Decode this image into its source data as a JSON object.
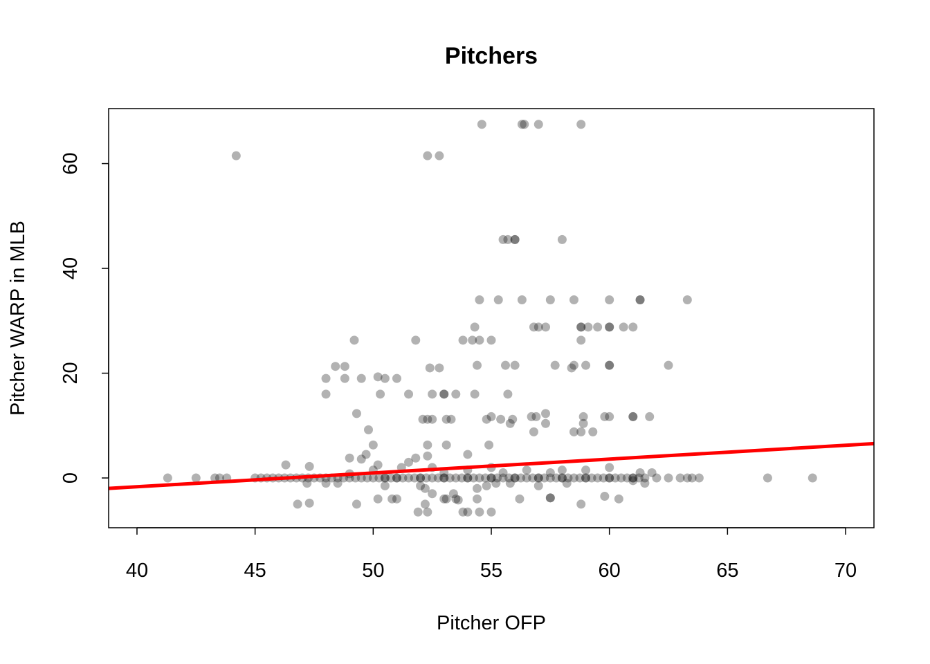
{
  "chart_data": {
    "type": "scatter",
    "title": "Pitchers",
    "xlabel": "Pitcher OFP",
    "ylabel": "Pitcher WARP in MLB",
    "xlim": [
      38.8,
      71.2
    ],
    "ylim": [
      -9.5,
      70.5
    ],
    "x_ticks": [
      "40",
      "45",
      "50",
      "55",
      "60",
      "65",
      "70"
    ],
    "y_ticks": [
      "0",
      "20",
      "40",
      "60"
    ],
    "grid": false,
    "point_color": "#000000",
    "point_alpha": 0.3,
    "fit_line": {
      "color": "#ff0000",
      "intercept": -12.24,
      "slope": 0.264
    },
    "points": [
      [
        54.6,
        67.5
      ],
      [
        56.3,
        67.5
      ],
      [
        56.4,
        67.5
      ],
      [
        57.0,
        67.5
      ],
      [
        58.8,
        67.5
      ],
      [
        44.2,
        61.5
      ],
      [
        52.3,
        61.5
      ],
      [
        52.8,
        61.5
      ],
      [
        55.5,
        45.5
      ],
      [
        55.7,
        45.5
      ],
      [
        56.0,
        45.5
      ],
      [
        56.0,
        45.5
      ],
      [
        58.0,
        45.5
      ],
      [
        54.5,
        34
      ],
      [
        55.3,
        34
      ],
      [
        56.3,
        34
      ],
      [
        57.5,
        34
      ],
      [
        58.5,
        34
      ],
      [
        60.0,
        34
      ],
      [
        61.3,
        34
      ],
      [
        61.3,
        34
      ],
      [
        63.3,
        34
      ],
      [
        54.3,
        28.8
      ],
      [
        56.8,
        28.8
      ],
      [
        57.0,
        28.8
      ],
      [
        57.3,
        28.8
      ],
      [
        58.8,
        28.8
      ],
      [
        58.8,
        28.8
      ],
      [
        59.1,
        28.8
      ],
      [
        59.5,
        28.8
      ],
      [
        60.0,
        28.8
      ],
      [
        60.0,
        28.8
      ],
      [
        60.6,
        28.8
      ],
      [
        61.0,
        28.8
      ],
      [
        49.2,
        26.3
      ],
      [
        51.8,
        26.3
      ],
      [
        53.8,
        26.3
      ],
      [
        54.2,
        26.3
      ],
      [
        54.5,
        26.3
      ],
      [
        55.0,
        26.3
      ],
      [
        58.8,
        26.3
      ],
      [
        48.4,
        21.3
      ],
      [
        48.8,
        21.3
      ],
      [
        52.4,
        21
      ],
      [
        52.8,
        21
      ],
      [
        54.4,
        21.5
      ],
      [
        55.6,
        21.5
      ],
      [
        56.0,
        21.5
      ],
      [
        57.7,
        21.5
      ],
      [
        58.4,
        21
      ],
      [
        58.5,
        21.5
      ],
      [
        59.0,
        21.5
      ],
      [
        60.0,
        21.5
      ],
      [
        60.0,
        21.5
      ],
      [
        62.5,
        21.5
      ],
      [
        48.0,
        19
      ],
      [
        48.8,
        19
      ],
      [
        49.5,
        19
      ],
      [
        50.2,
        19.3
      ],
      [
        50.5,
        19
      ],
      [
        51.0,
        19
      ],
      [
        48.0,
        16
      ],
      [
        50.3,
        16
      ],
      [
        51.5,
        16
      ],
      [
        52.5,
        16
      ],
      [
        53.0,
        16
      ],
      [
        53.0,
        16
      ],
      [
        53.5,
        16
      ],
      [
        54.3,
        16
      ],
      [
        55.7,
        16
      ],
      [
        49.3,
        12.3
      ],
      [
        57.3,
        12.3
      ],
      [
        52.1,
        11.2
      ],
      [
        52.3,
        11.2
      ],
      [
        52.5,
        11.2
      ],
      [
        53.1,
        11.2
      ],
      [
        53.3,
        11.2
      ],
      [
        54.8,
        11.2
      ],
      [
        55.0,
        11.7
      ],
      [
        55.4,
        11.2
      ],
      [
        55.9,
        11.2
      ],
      [
        56.7,
        11.7
      ],
      [
        56.9,
        11.7
      ],
      [
        58.9,
        11.7
      ],
      [
        59.8,
        11.7
      ],
      [
        60.0,
        11.7
      ],
      [
        61.0,
        11.7
      ],
      [
        61.0,
        11.7
      ],
      [
        61.7,
        11.7
      ],
      [
        55.8,
        10.4
      ],
      [
        57.3,
        10.4
      ],
      [
        58.9,
        10.4
      ],
      [
        49.8,
        9.2
      ],
      [
        56.8,
        8.8
      ],
      [
        58.5,
        8.8
      ],
      [
        58.8,
        8.8
      ],
      [
        59.3,
        8.8
      ],
      [
        50.0,
        6.3
      ],
      [
        52.3,
        6.3
      ],
      [
        53.1,
        6.3
      ],
      [
        54.9,
        6.3
      ],
      [
        46.3,
        2.5
      ],
      [
        47.3,
        2.2
      ],
      [
        46.8,
        -5
      ],
      [
        47.2,
        -1
      ],
      [
        48.0,
        -1
      ],
      [
        48.5,
        -1
      ],
      [
        49.0,
        0.8
      ],
      [
        49.0,
        3.8
      ],
      [
        49.5,
        3.6
      ],
      [
        49.7,
        4.5
      ],
      [
        50.0,
        1.5
      ],
      [
        50.2,
        2.5
      ],
      [
        50.5,
        -1.5
      ],
      [
        50.2,
        -4
      ],
      [
        50.8,
        -4
      ],
      [
        51.0,
        -4
      ],
      [
        51.2,
        2
      ],
      [
        51.5,
        3
      ],
      [
        51.8,
        3.8
      ],
      [
        52.0,
        -1.5
      ],
      [
        52.2,
        -2
      ],
      [
        52.3,
        4.2
      ],
      [
        52.5,
        2
      ],
      [
        52.5,
        -3
      ],
      [
        53.0,
        1
      ],
      [
        53.0,
        -4
      ],
      [
        53.4,
        -3
      ],
      [
        53.5,
        -4
      ],
      [
        54.0,
        1.5
      ],
      [
        54.0,
        4.5
      ],
      [
        54.4,
        -2
      ],
      [
        54.8,
        -1.5
      ],
      [
        55.0,
        2
      ],
      [
        55.2,
        -1
      ],
      [
        55.5,
        1
      ],
      [
        55.8,
        -1
      ],
      [
        56.2,
        -4
      ],
      [
        56.5,
        1.5
      ],
      [
        57.0,
        -1.5
      ],
      [
        57.5,
        1
      ],
      [
        58.0,
        1.5
      ],
      [
        58.2,
        -1
      ],
      [
        59.0,
        1.5
      ],
      [
        59.8,
        -3.5
      ],
      [
        60.0,
        2
      ],
      [
        61.3,
        1
      ],
      [
        61.5,
        -1
      ],
      [
        61.0,
        -0.5
      ],
      [
        61.8,
        1
      ],
      [
        47.3,
        -4.8
      ],
      [
        49.3,
        -5
      ],
      [
        52.2,
        -5
      ],
      [
        58.8,
        -5
      ],
      [
        57.5,
        -3.8
      ],
      [
        57.5,
        -3.8
      ],
      [
        53.1,
        -4
      ],
      [
        53.6,
        -4.2
      ],
      [
        54.4,
        -4
      ],
      [
        60.4,
        -4
      ],
      [
        51.9,
        -6.5
      ],
      [
        52.3,
        -6.5
      ],
      [
        53.8,
        -6.5
      ],
      [
        54.0,
        -6.5
      ],
      [
        54.5,
        -6.5
      ],
      [
        55.0,
        -6.5
      ],
      [
        41.3,
        0
      ],
      [
        42.5,
        0
      ],
      [
        43.3,
        0
      ],
      [
        43.5,
        0
      ],
      [
        43.8,
        0
      ],
      [
        45.0,
        0
      ],
      [
        45.25,
        0
      ],
      [
        45.5,
        0
      ],
      [
        45.75,
        0
      ],
      [
        46.0,
        0
      ],
      [
        46.25,
        0
      ],
      [
        46.5,
        0
      ],
      [
        46.75,
        0
      ],
      [
        47.0,
        0
      ],
      [
        47.25,
        0
      ],
      [
        47.5,
        0
      ],
      [
        47.75,
        0
      ],
      [
        48.0,
        0
      ],
      [
        48.25,
        0
      ],
      [
        48.5,
        0
      ],
      [
        48.75,
        0
      ],
      [
        49.0,
        0
      ],
      [
        49.25,
        0
      ],
      [
        49.5,
        0
      ],
      [
        49.75,
        0
      ],
      [
        50.0,
        0
      ],
      [
        50.25,
        0
      ],
      [
        50.5,
        0
      ],
      [
        50.75,
        0
      ],
      [
        51.0,
        0
      ],
      [
        51.25,
        0
      ],
      [
        51.5,
        0
      ],
      [
        51.75,
        0
      ],
      [
        52.0,
        0
      ],
      [
        52.25,
        0
      ],
      [
        52.5,
        0
      ],
      [
        52.75,
        0
      ],
      [
        53.0,
        0
      ],
      [
        53.25,
        0
      ],
      [
        53.5,
        0
      ],
      [
        53.75,
        0
      ],
      [
        54.0,
        0
      ],
      [
        54.25,
        0
      ],
      [
        54.5,
        0
      ],
      [
        54.75,
        0
      ],
      [
        55.0,
        0
      ],
      [
        55.25,
        0
      ],
      [
        55.5,
        0
      ],
      [
        55.75,
        0
      ],
      [
        56.0,
        0
      ],
      [
        56.25,
        0
      ],
      [
        56.5,
        0
      ],
      [
        56.75,
        0
      ],
      [
        57.0,
        0
      ],
      [
        57.25,
        0
      ],
      [
        57.5,
        0
      ],
      [
        57.75,
        0
      ],
      [
        58.0,
        0
      ],
      [
        58.25,
        0
      ],
      [
        58.5,
        0
      ],
      [
        58.75,
        0
      ],
      [
        59.0,
        0
      ],
      [
        59.25,
        0
      ],
      [
        59.5,
        0
      ],
      [
        59.75,
        0
      ],
      [
        60.0,
        0
      ],
      [
        60.25,
        0
      ],
      [
        60.5,
        0
      ],
      [
        60.75,
        0
      ],
      [
        61.0,
        0
      ],
      [
        61.25,
        0
      ],
      [
        61.5,
        0
      ],
      [
        50.5,
        0
      ],
      [
        51.0,
        0
      ],
      [
        52.0,
        0
      ],
      [
        53.0,
        0
      ],
      [
        54.0,
        0
      ],
      [
        55.0,
        0
      ],
      [
        56.0,
        0
      ],
      [
        57.0,
        0
      ],
      [
        58.0,
        0
      ],
      [
        59.0,
        0
      ],
      [
        60.0,
        0
      ],
      [
        61.0,
        0
      ],
      [
        62.0,
        0
      ],
      [
        62.5,
        0
      ],
      [
        63.0,
        0
      ],
      [
        63.3,
        0
      ],
      [
        63.5,
        0
      ],
      [
        63.8,
        0
      ],
      [
        66.7,
        0
      ],
      [
        68.6,
        0
      ]
    ]
  }
}
